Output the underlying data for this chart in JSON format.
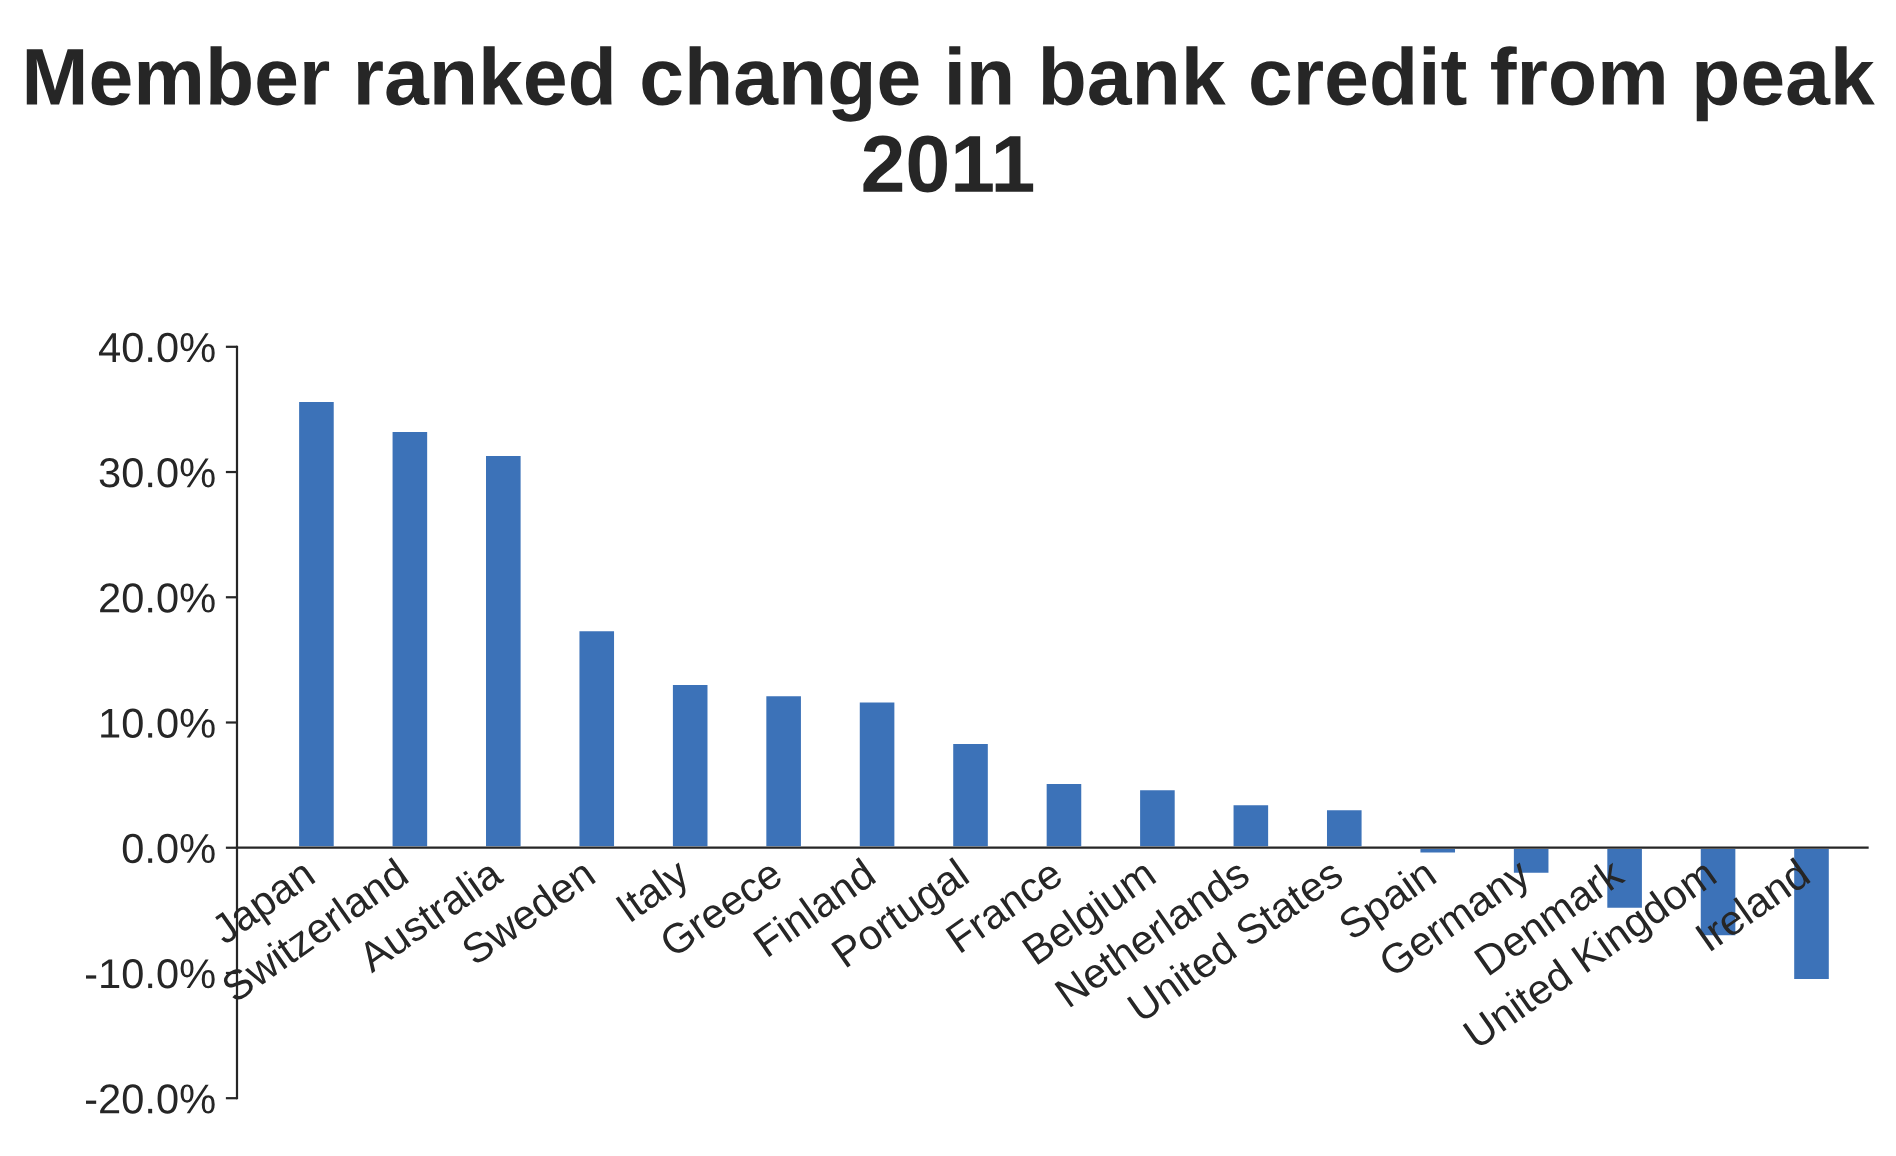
{
  "chart_data": {
    "type": "bar",
    "title": "Member ranked change in bank credit from peak 2011",
    "categories": [
      "Japan",
      "Switzerland",
      "Australia",
      "Sweden",
      "Italy",
      "Greece",
      "Finland",
      "Portugal",
      "France",
      "Belgium",
      "Netherlands",
      "United States",
      "Spain",
      "Germany",
      "Denmark",
      "United Kingdom",
      "Ireland"
    ],
    "values": [
      35.7,
      33.3,
      31.4,
      17.4,
      13.1,
      12.2,
      11.7,
      8.4,
      5.2,
      4.7,
      3.5,
      3.1,
      -0.5,
      -2.1,
      -4.9,
      -7.1,
      -10.6
    ],
    "color": "#3c72b8",
    "ylim": [
      -20,
      40
    ],
    "yticks": [
      {
        "value": -20,
        "label": "-20.0%"
      },
      {
        "value": -10,
        "label": "-10.0%"
      },
      {
        "value": 0,
        "label": "0.0%"
      },
      {
        "value": 10,
        "label": "10.0%"
      },
      {
        "value": 20,
        "label": "20.0%"
      },
      {
        "value": 30,
        "label": "30.0%"
      },
      {
        "value": 40,
        "label": "40.0%"
      }
    ],
    "grid": false,
    "legend": false
  }
}
